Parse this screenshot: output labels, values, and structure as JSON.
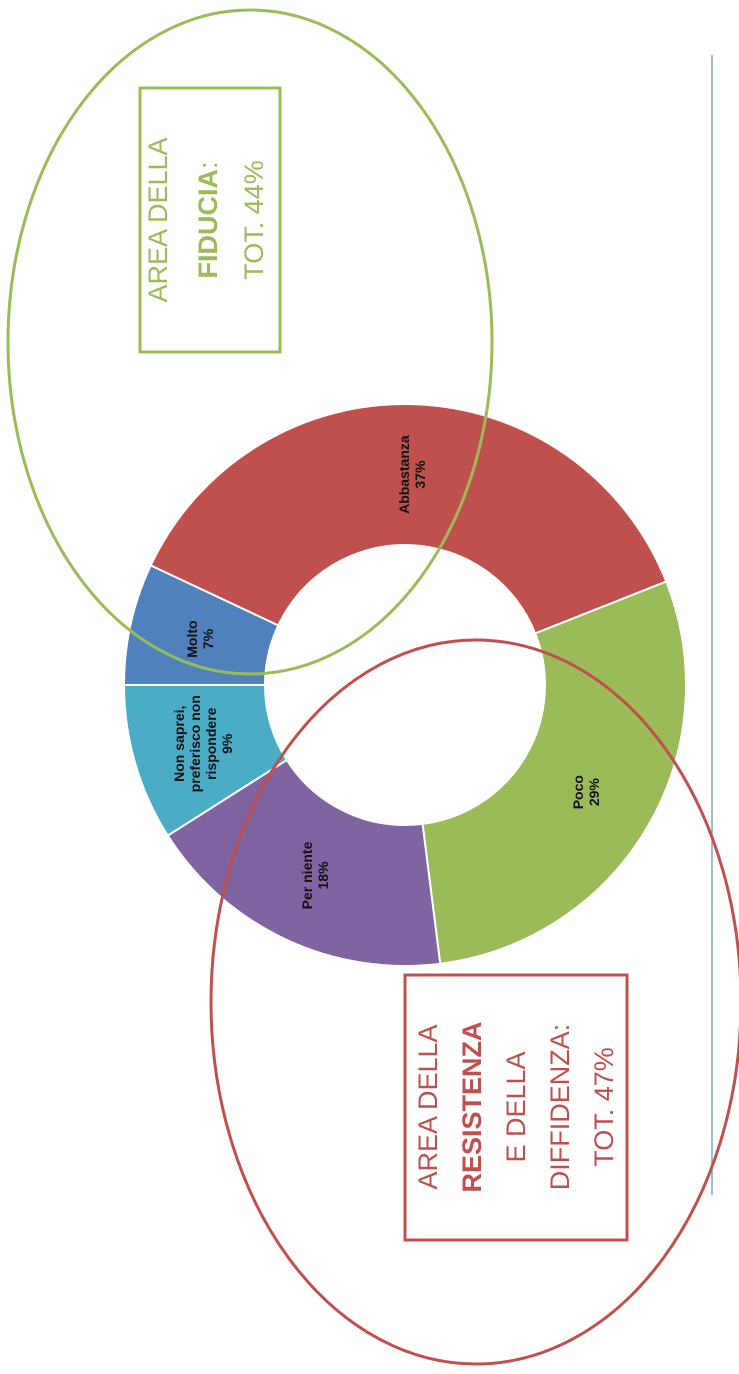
{
  "chart_data": {
    "type": "donut",
    "categories": [
      "Molto",
      "Abbastanza",
      "Poco",
      "Per niente",
      "Non saprei, preferisco non rispondere"
    ],
    "values": [
      7,
      37,
      29,
      18,
      9
    ],
    "value_labels": [
      "7%",
      "37%",
      "29%",
      "18%",
      "9%"
    ],
    "colors": [
      "#4f81bd",
      "#c0504d",
      "#9bbb59",
      "#8064a2",
      "#4bacc6"
    ],
    "annotations": [
      {
        "lines": [
          "AREA DELLA",
          "FIDUCIA",
          "TOT. 44%"
        ],
        "suffix": ":",
        "color": "#9bbb59"
      },
      {
        "lines": [
          "AREA DELLA",
          "RESISTENZA",
          "E  DELLA",
          "DIFFIDENZA:",
          "TOT. 47%"
        ],
        "color": "#c0504d"
      }
    ]
  }
}
